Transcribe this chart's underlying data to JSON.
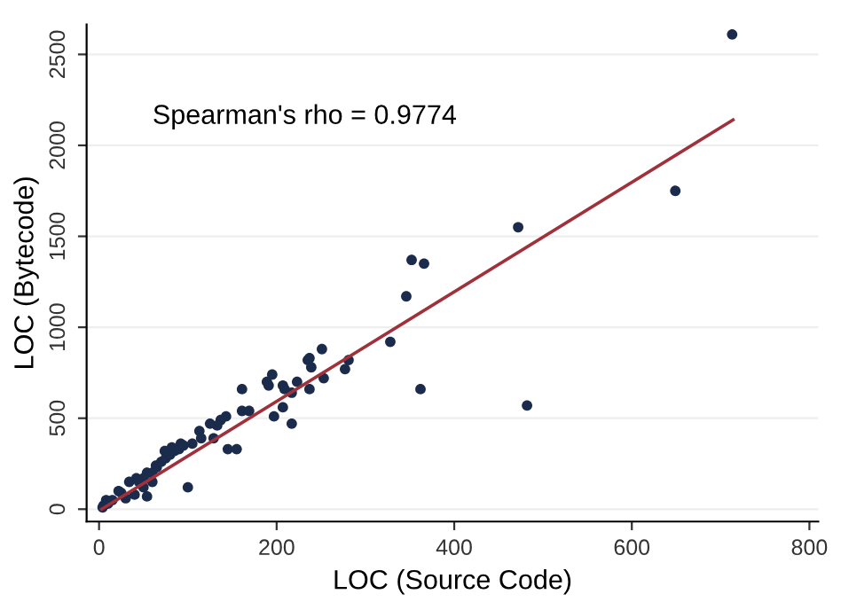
{
  "chart_data": {
    "type": "scatter",
    "xlabel": "LOC (Source Code)",
    "ylabel": "LOC (Bytecode)",
    "annotations": [
      "Spearman's rho = 0.9774"
    ],
    "xlim": [
      -14,
      810
    ],
    "ylim": [
      -68,
      2665
    ],
    "xticks": [
      0,
      200,
      400,
      600,
      800
    ],
    "yticks": [
      0,
      500,
      1000,
      1500,
      2000,
      2500
    ],
    "grid": "y",
    "marker": "circle",
    "series": [
      {
        "color": "#1a2b4c",
        "x": [
          713,
          649,
          472,
          482,
          352,
          366,
          346,
          328,
          362,
          251,
          235,
          237,
          239,
          281,
          277,
          253,
          237,
          217,
          197,
          207,
          189,
          191,
          195,
          207,
          209,
          217,
          223,
          161,
          161,
          143,
          137,
          133,
          129,
          145,
          155,
          100,
          54,
          113,
          125,
          74,
          82,
          92,
          64,
          54,
          42,
          34,
          22,
          8,
          4,
          115,
          105,
          169,
          5,
          10,
          15,
          25,
          45,
          50,
          60,
          65,
          70,
          75,
          80,
          85,
          90,
          95,
          30,
          40,
          50,
          60
        ],
        "values": [
          2610,
          1750,
          1550,
          570,
          1370,
          1350,
          1170,
          920,
          660,
          880,
          820,
          830,
          780,
          820,
          770,
          720,
          660,
          470,
          510,
          560,
          700,
          680,
          740,
          680,
          660,
          640,
          700,
          660,
          540,
          510,
          490,
          460,
          390,
          330,
          330,
          120,
          70,
          430,
          470,
          320,
          340,
          360,
          240,
          200,
          170,
          150,
          100,
          50,
          10,
          390,
          360,
          540,
          20,
          30,
          50,
          90,
          150,
          170,
          200,
          230,
          260,
          280,
          300,
          320,
          330,
          350,
          60,
          80,
          120,
          150
        ]
      },
      {
        "type": "line",
        "color": "#a0303a",
        "marker": "none",
        "x": [
          3,
          714
        ],
        "values": [
          0,
          2140
        ]
      }
    ]
  }
}
